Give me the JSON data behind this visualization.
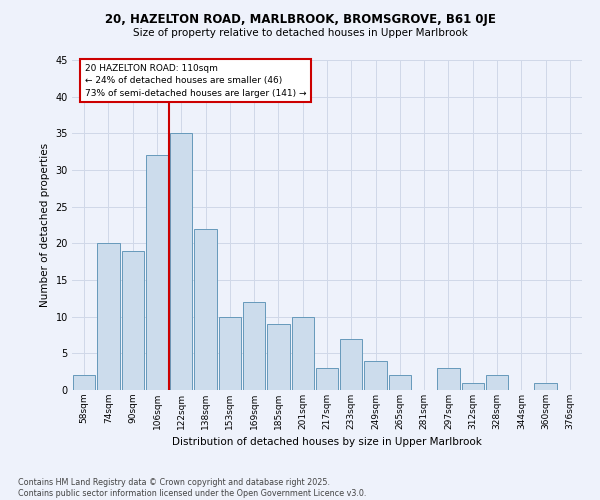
{
  "title1": "20, HAZELTON ROAD, MARLBROOK, BROMSGROVE, B61 0JE",
  "title2": "Size of property relative to detached houses in Upper Marlbrook",
  "xlabel": "Distribution of detached houses by size in Upper Marlbrook",
  "ylabel": "Number of detached properties",
  "categories": [
    "58sqm",
    "74sqm",
    "90sqm",
    "106sqm",
    "122sqm",
    "138sqm",
    "153sqm",
    "169sqm",
    "185sqm",
    "201sqm",
    "217sqm",
    "233sqm",
    "249sqm",
    "265sqm",
    "281sqm",
    "297sqm",
    "312sqm",
    "328sqm",
    "344sqm",
    "360sqm",
    "376sqm"
  ],
  "values": [
    2,
    20,
    19,
    32,
    35,
    22,
    10,
    12,
    9,
    10,
    3,
    7,
    4,
    2,
    0,
    3,
    1,
    2,
    0,
    1,
    0
  ],
  "bar_color": "#ccdcec",
  "bar_edge_color": "#6699bb",
  "background_color": "#eef2fb",
  "grid_color": "#d0d8e8",
  "annotation_text": "20 HAZELTON ROAD: 110sqm\n← 24% of detached houses are smaller (46)\n73% of semi-detached houses are larger (141) →",
  "annotation_box_color": "#ffffff",
  "annotation_box_edge": "#cc0000",
  "vline_color": "#cc0000",
  "vline_x": 3.5,
  "footer": "Contains HM Land Registry data © Crown copyright and database right 2025.\nContains public sector information licensed under the Open Government Licence v3.0.",
  "ylim": [
    0,
    45
  ],
  "yticks": [
    0,
    5,
    10,
    15,
    20,
    25,
    30,
    35,
    40,
    45
  ]
}
